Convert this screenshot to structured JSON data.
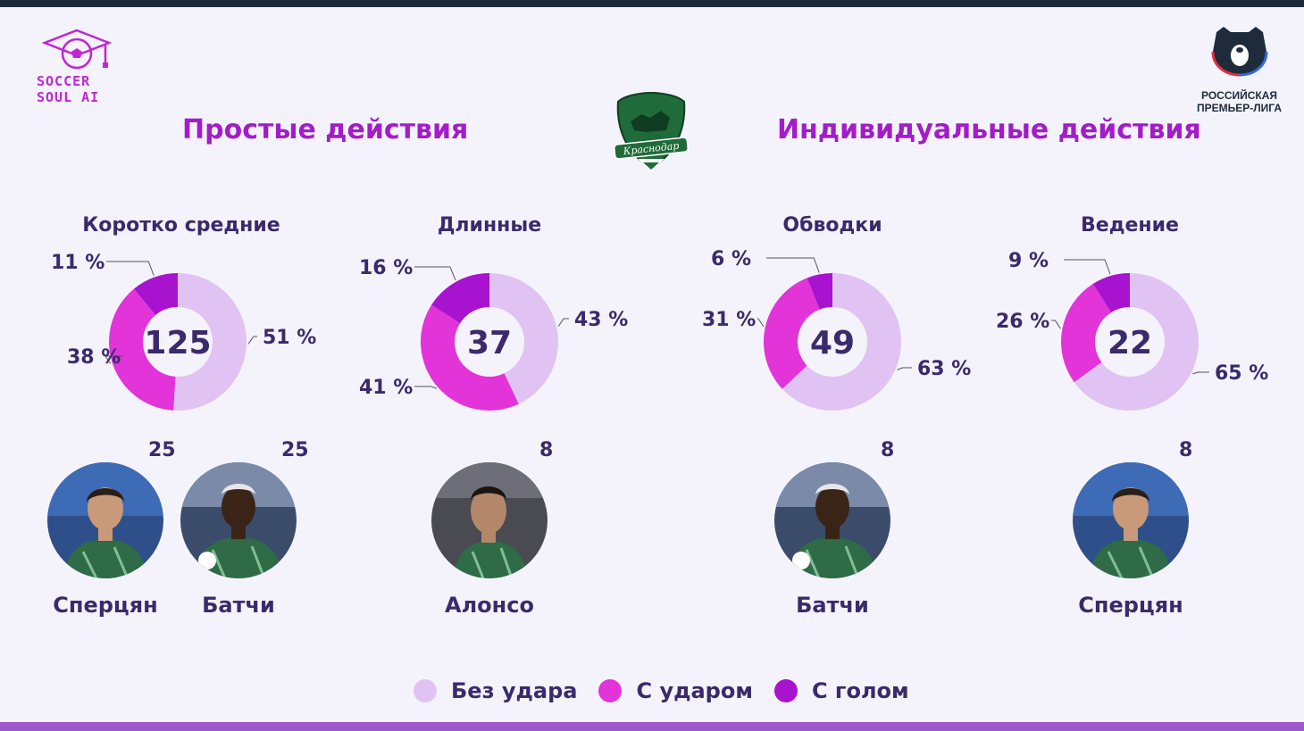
{
  "brand": {
    "line1": "SOCCER",
    "line2": "SOUL AI"
  },
  "league": {
    "line1": "РОССИЙСКАЯ",
    "line2": "ПРЕМЬЕР-ЛИГА"
  },
  "club_logo_text": "Краснодар",
  "sections": {
    "left": "Простые действия",
    "right": "Индивидуальные действия"
  },
  "colors": {
    "no_shot": "#e0c3f2",
    "with_shot": "#e234d9",
    "with_goal": "#a813cf"
  },
  "legend": [
    {
      "label": "Без удара",
      "color": "#e0c3f2"
    },
    {
      "label": "С ударом",
      "color": "#e234d9"
    },
    {
      "label": "С голом",
      "color": "#a813cf"
    }
  ],
  "chart_data": [
    {
      "type": "pie",
      "title": "Коротко средние",
      "total": "125",
      "series": [
        {
          "name": "Без удара",
          "value": 51,
          "label": "51 %"
        },
        {
          "name": "С ударом",
          "value": 38,
          "label": "38 %"
        },
        {
          "name": "С голом",
          "value": 11,
          "label": "11 %"
        }
      ],
      "players": [
        {
          "name": "Сперцян",
          "count": "25",
          "photo": "player-a"
        },
        {
          "name": "Батчи",
          "count": "25",
          "photo": "player-b"
        }
      ]
    },
    {
      "type": "pie",
      "title": "Длинные",
      "total": "37",
      "series": [
        {
          "name": "Без удара",
          "value": 43,
          "label": "43 %"
        },
        {
          "name": "С ударом",
          "value": 41,
          "label": "41 %"
        },
        {
          "name": "С голом",
          "value": 16,
          "label": "16 %"
        }
      ],
      "players": [
        {
          "name": "Алонсо",
          "count": "8",
          "photo": "player-c"
        }
      ]
    },
    {
      "type": "pie",
      "title": "Обводки",
      "total": "49",
      "series": [
        {
          "name": "Без удара",
          "value": 63,
          "label": "63 %"
        },
        {
          "name": "С ударом",
          "value": 31,
          "label": "31 %"
        },
        {
          "name": "С голом",
          "value": 6,
          "label": "6 %"
        }
      ],
      "players": [
        {
          "name": "Батчи",
          "count": "8",
          "photo": "player-b"
        }
      ]
    },
    {
      "type": "pie",
      "title": "Ведение",
      "total": "22",
      "series": [
        {
          "name": "Без удара",
          "value": 65,
          "label": "65 %"
        },
        {
          "name": "С ударом",
          "value": 26,
          "label": "26 %"
        },
        {
          "name": "С голом",
          "value": 9,
          "label": "9 %"
        }
      ],
      "players": [
        {
          "name": "Сперцян",
          "count": "8",
          "photo": "player-a"
        }
      ]
    }
  ]
}
